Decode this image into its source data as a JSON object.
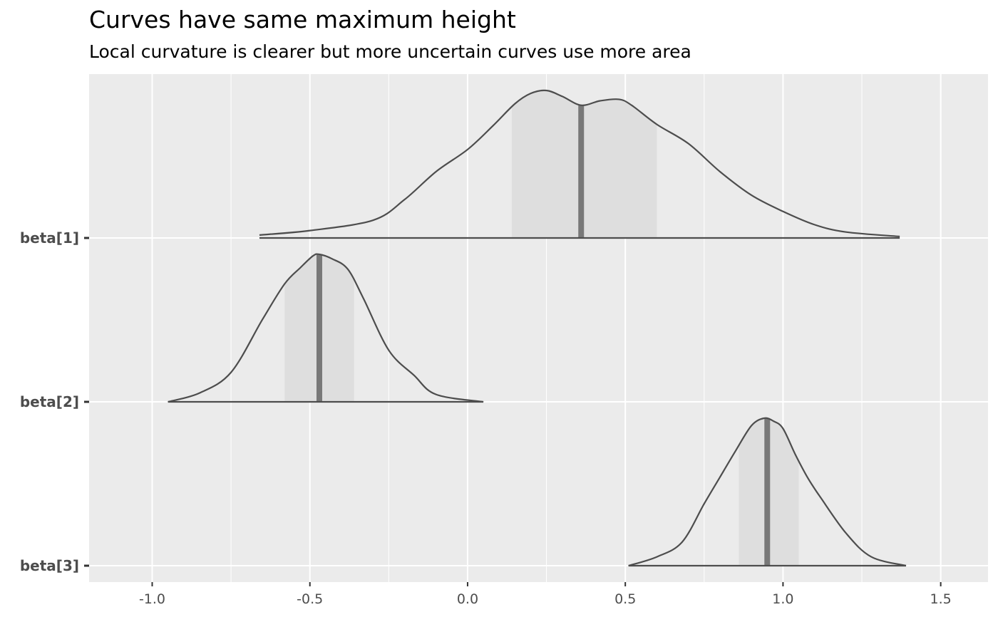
{
  "chart_data": {
    "type": "area",
    "title": "Curves have same maximum height",
    "subtitle": "Local curvature is clearer but more uncertain curves use more area",
    "xlabel": "",
    "ylabel": "",
    "xlim": [
      -1.2,
      1.65
    ],
    "x_ticks": [
      -1.0,
      -0.5,
      0.0,
      0.5,
      1.0,
      1.5
    ],
    "x_tick_labels": [
      "-1.0",
      "-0.5",
      "0.0",
      "0.5",
      "1.0",
      "1.5"
    ],
    "categories": [
      "beta[1]",
      "beta[2]",
      "beta[3]"
    ],
    "grid": true,
    "legend": "none",
    "colors": {
      "panel": "#ebebeb",
      "grid": "#ffffff",
      "curve": "#4d4d4d",
      "interval": "#dedede",
      "median": "#787878",
      "tick_label": "#4d4d4d"
    },
    "series": [
      {
        "name": "beta[1]",
        "median": 0.36,
        "interval": [
          0.14,
          0.6
        ],
        "density_x": [
          -0.66,
          -0.5,
          -0.3,
          -0.2,
          -0.1,
          0.0,
          0.08,
          0.15,
          0.2,
          0.25,
          0.3,
          0.36,
          0.42,
          0.48,
          0.52,
          0.6,
          0.7,
          0.8,
          0.9,
          1.0,
          1.1,
          1.2,
          1.37
        ],
        "density_y": [
          0.02,
          0.05,
          0.12,
          0.26,
          0.45,
          0.6,
          0.76,
          0.91,
          0.98,
          1.0,
          0.96,
          0.9,
          0.93,
          0.94,
          0.9,
          0.77,
          0.64,
          0.45,
          0.29,
          0.18,
          0.09,
          0.04,
          0.01
        ]
      },
      {
        "name": "beta[2]",
        "median": -0.47,
        "interval": [
          -0.58,
          -0.36
        ],
        "density_x": [
          -0.95,
          -0.85,
          -0.75,
          -0.65,
          -0.58,
          -0.53,
          -0.49,
          -0.47,
          -0.43,
          -0.38,
          -0.33,
          -0.25,
          -0.17,
          -0.1,
          0.05
        ],
        "density_y": [
          0.0,
          0.06,
          0.2,
          0.56,
          0.8,
          0.91,
          0.99,
          1.0,
          0.97,
          0.9,
          0.7,
          0.35,
          0.18,
          0.05,
          0.0
        ]
      },
      {
        "name": "beta[3]",
        "median": 0.95,
        "interval": [
          0.86,
          1.05
        ],
        "density_x": [
          0.51,
          0.6,
          0.68,
          0.75,
          0.8,
          0.85,
          0.9,
          0.94,
          0.97,
          1.0,
          1.04,
          1.08,
          1.12,
          1.2,
          1.28,
          1.39
        ],
        "density_y": [
          0.0,
          0.06,
          0.16,
          0.42,
          0.6,
          0.78,
          0.95,
          1.0,
          0.98,
          0.93,
          0.75,
          0.59,
          0.46,
          0.22,
          0.06,
          0.0
        ]
      }
    ]
  }
}
